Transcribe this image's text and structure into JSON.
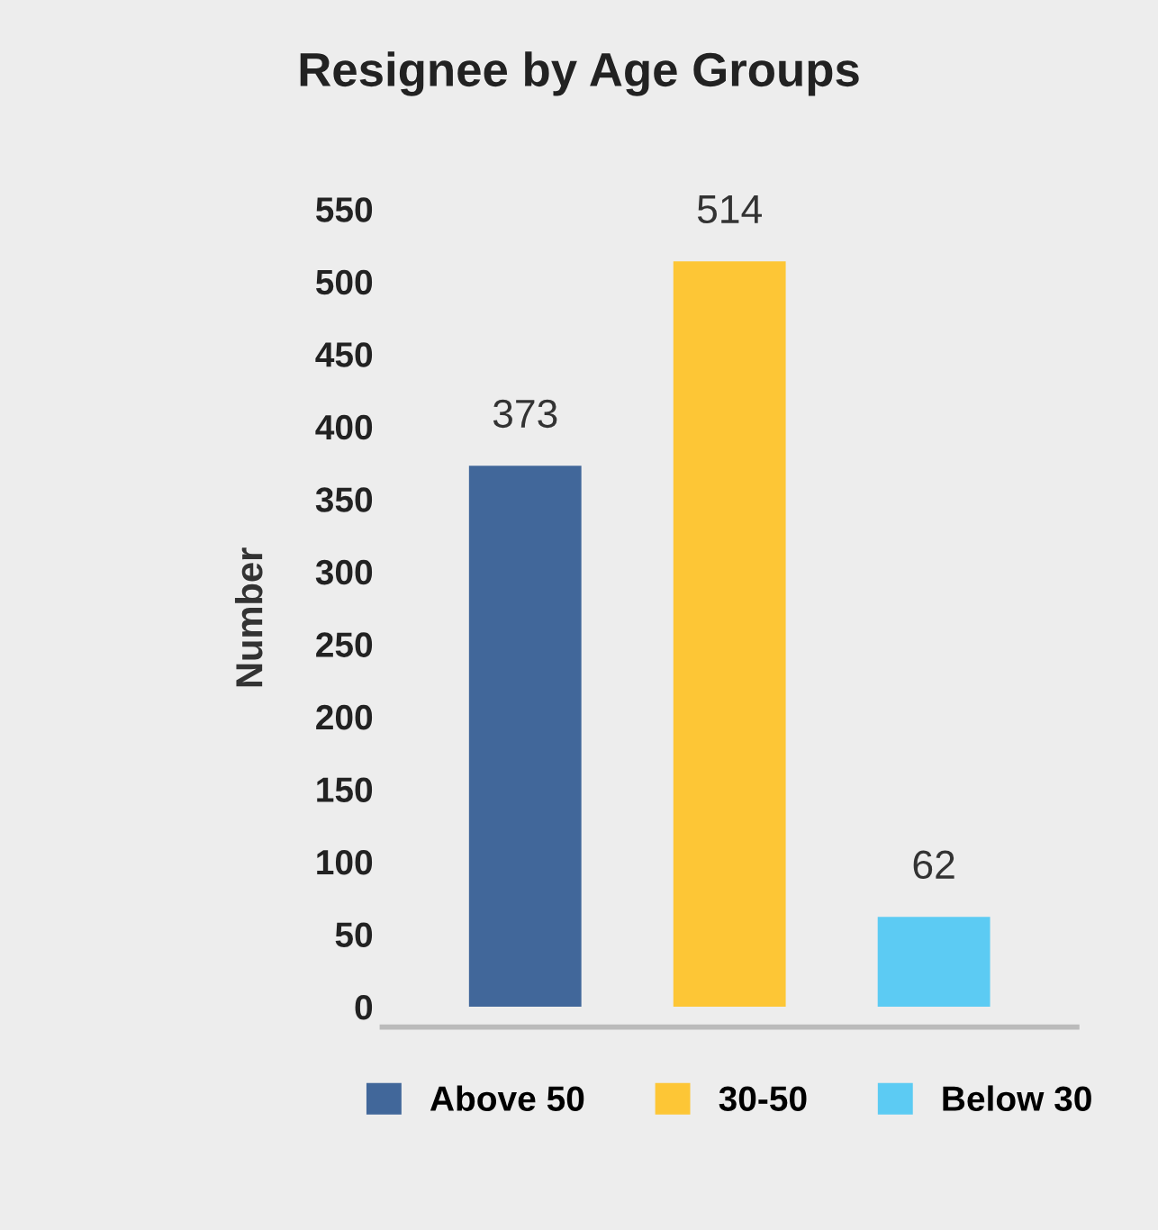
{
  "chart_data": {
    "type": "bar",
    "title": "Resignee by Age Groups",
    "ylabel": "Number",
    "categories": [
      null,
      null,
      null
    ],
    "stacked": true,
    "series": [
      {
        "name": "Above 50",
        "color": "#41679a",
        "values": [
          373,
          null,
          null
        ]
      },
      {
        "name": "30-50",
        "color": "#fdc636",
        "values": [
          null,
          514,
          null
        ]
      },
      {
        "name": "Below 30",
        "color": "#5ccbf3",
        "values": [
          null,
          null,
          62
        ]
      }
    ],
    "ylim": [
      -14,
      550
    ],
    "yticks": [
      0,
      50,
      100,
      150,
      200,
      250,
      300,
      350,
      400,
      450,
      500,
      550
    ],
    "data_labels": true,
    "legend": "bottom",
    "grid": false
  }
}
